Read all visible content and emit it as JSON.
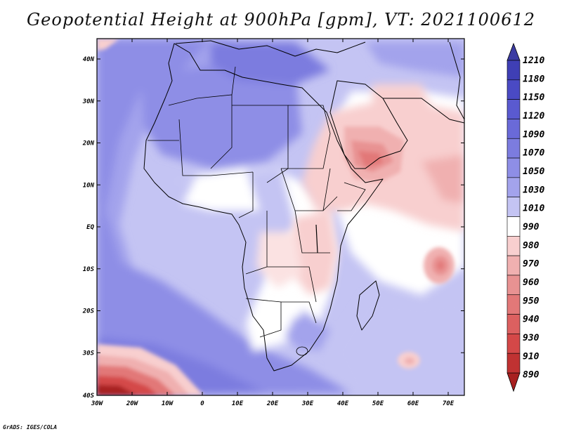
{
  "title": "Geopotential Height at 900hPa [gpm], VT: 2021100612",
  "credit": "GrADS: IGES/COLA",
  "map": {
    "lat_labels": [
      "40N",
      "30N",
      "20N",
      "10N",
      "EQ",
      "10S",
      "20S",
      "30S",
      "40S"
    ],
    "lon_labels": [
      "30W",
      "20W",
      "10W",
      "0",
      "10E",
      "20E",
      "30E",
      "40E",
      "50E",
      "60E",
      "70E"
    ]
  },
  "legend": {
    "labels": [
      "1210",
      "1180",
      "1150",
      "1120",
      "1090",
      "1070",
      "1050",
      "1030",
      "1010",
      "990",
      "980",
      "970",
      "960",
      "950",
      "940",
      "930",
      "910",
      "890"
    ],
    "colors": [
      "#3c3ca3",
      "#3f3fb5",
      "#4a4ac4",
      "#5a5ad0",
      "#6a6ad8",
      "#7c7cdf",
      "#8e8ee6",
      "#a3a3ec",
      "#c4c4f3",
      "#ffffff",
      "#f8cfcf",
      "#f0b0b0",
      "#e89292",
      "#e27878",
      "#dc6060",
      "#d44848",
      "#c03232",
      "#a82020"
    ]
  }
}
